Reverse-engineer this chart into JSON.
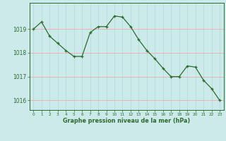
{
  "x": [
    0,
    1,
    2,
    3,
    4,
    5,
    6,
    7,
    8,
    9,
    10,
    11,
    12,
    13,
    14,
    15,
    16,
    17,
    18,
    19,
    20,
    21,
    22,
    23
  ],
  "y": [
    1019.0,
    1019.3,
    1018.7,
    1018.4,
    1018.1,
    1017.85,
    1017.85,
    1018.85,
    1019.1,
    1019.1,
    1019.55,
    1019.5,
    1019.1,
    1018.55,
    1018.1,
    1017.75,
    1017.35,
    1017.0,
    1017.0,
    1017.45,
    1017.4,
    1016.85,
    1016.5,
    1016.0
  ],
  "line_color": "#2d6a2d",
  "marker_color": "#2d6a2d",
  "bg_color": "#cceaea",
  "grid_color_v": "#b0d8d8",
  "grid_color_h": "#f0a0a0",
  "border_color": "#2d6a2d",
  "xlabel": "Graphe pression niveau de la mer (hPa)",
  "xlabel_color": "#2d6a2d",
  "tick_color": "#2d6a2d",
  "ylim": [
    1015.6,
    1020.1
  ],
  "xlim": [
    -0.5,
    23.5
  ],
  "yticks": [
    1016,
    1017,
    1018,
    1019
  ],
  "xtick_labels": [
    "0",
    "1",
    "2",
    "3",
    "4",
    "5",
    "6",
    "7",
    "8",
    "9",
    "10",
    "11",
    "12",
    "13",
    "14",
    "15",
    "16",
    "17",
    "18",
    "19",
    "20",
    "21",
    "22",
    "23"
  ]
}
